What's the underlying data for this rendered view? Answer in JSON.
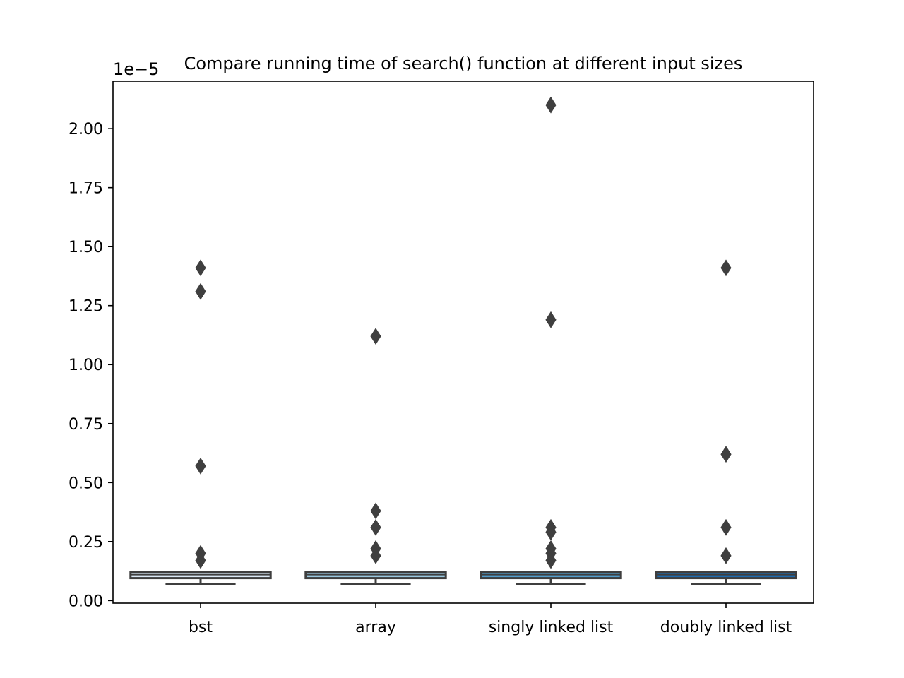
{
  "chart_data": {
    "type": "box",
    "title": "Compare running time of search() function at different input sizes",
    "xlabel": "",
    "ylabel": "",
    "y_scale_label": "1e−5",
    "ylim": [
      -1.1e-07,
      2.201e-05
    ],
    "y_ticks": [
      0.0,
      2.5e-06,
      5e-06,
      7.5e-06,
      1e-05,
      1.25e-05,
      1.5e-05,
      1.75e-05,
      2e-05
    ],
    "y_tick_labels": [
      "0.00",
      "0.25",
      "0.50",
      "0.75",
      "1.00",
      "1.25",
      "1.50",
      "1.75",
      "2.00"
    ],
    "categories": [
      "bst",
      "array",
      "singly linked list",
      "doubly linked list"
    ],
    "grid": false,
    "series": [
      {
        "category": "bst",
        "color": "#dbe9f6",
        "whisker_low": 7e-07,
        "q1": 9.5e-07,
        "median": 1.1e-06,
        "q3": 1.2e-06,
        "whisker_high": 1.2e-06,
        "outliers": [
          1.41e-05,
          1.31e-05,
          5.7e-06,
          2e-06,
          1.7e-06
        ]
      },
      {
        "category": "array",
        "color": "#9ac8e0",
        "whisker_low": 7e-07,
        "q1": 9.5e-07,
        "median": 1.1e-06,
        "q3": 1.2e-06,
        "whisker_high": 1.2e-06,
        "outliers": [
          1.12e-05,
          3.8e-06,
          3.1e-06,
          2.2e-06,
          1.9e-06
        ]
      },
      {
        "category": "singly linked list",
        "color": "#529dcc",
        "whisker_low": 7e-07,
        "q1": 9.5e-07,
        "median": 1.1e-06,
        "q3": 1.2e-06,
        "whisker_high": 1.2e-06,
        "outliers": [
          2.1e-05,
          1.19e-05,
          3.1e-06,
          2.9e-06,
          2.2e-06,
          2e-06,
          1.7e-06
        ]
      },
      {
        "category": "doubly linked list",
        "color": "#1c6aaf",
        "whisker_low": 7e-07,
        "q1": 9.5e-07,
        "median": 1.1e-06,
        "q3": 1.2e-06,
        "whisker_high": 1.2e-06,
        "outliers": [
          1.41e-05,
          6.2e-06,
          3.1e-06,
          1.9e-06
        ]
      }
    ]
  }
}
